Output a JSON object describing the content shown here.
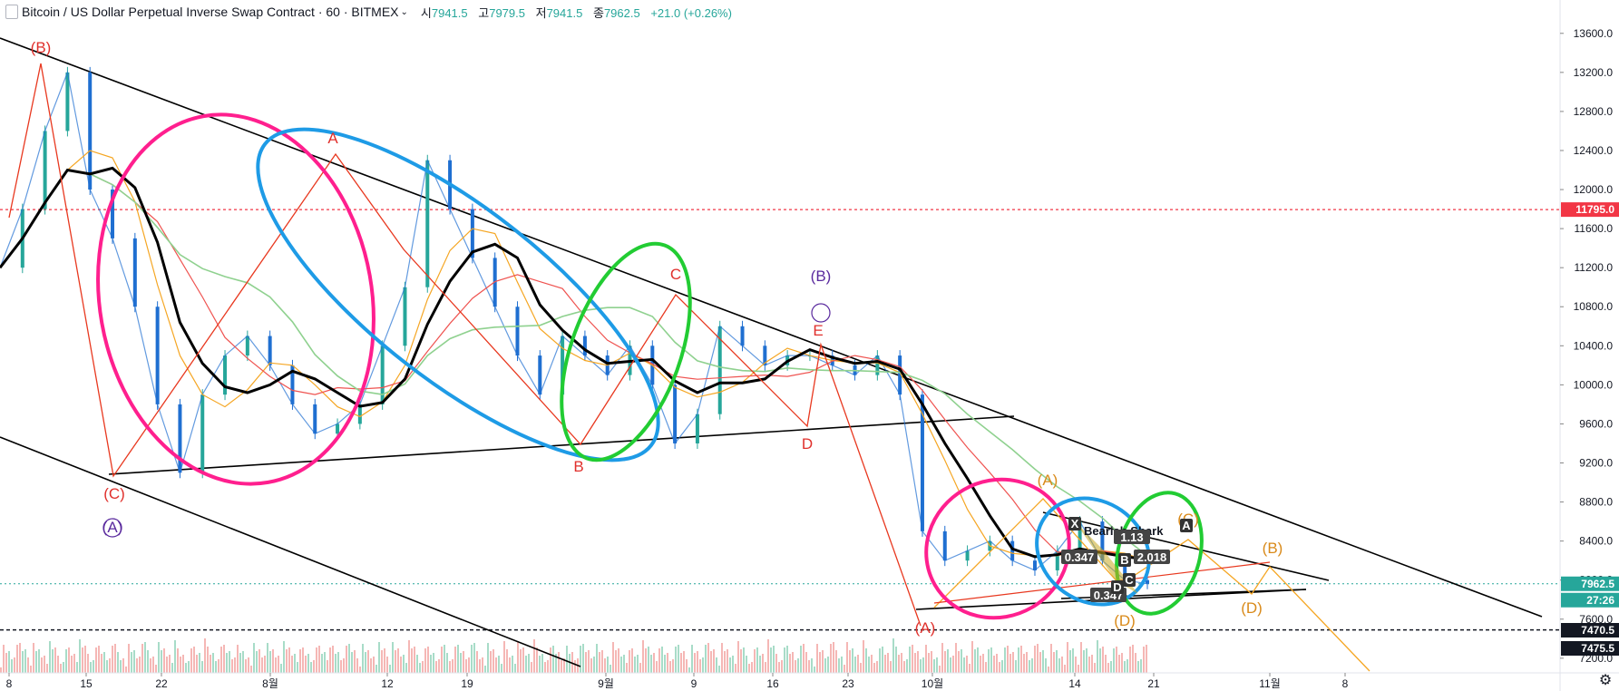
{
  "header": {
    "title": "Bitcoin / US Dollar Perpetual Inverse Swap Contract · 60 · BITMEX",
    "open_label": "시",
    "open": "7941.5",
    "high_label": "고",
    "high": "7979.5",
    "low_label": "저",
    "low": "7941.5",
    "close_label": "종",
    "close": "7962.5",
    "change": "+21.0 (+0.26%)"
  },
  "colors": {
    "up": "#26a69a",
    "down": "#ef5350",
    "price_line": "#26a69a",
    "red_level": "#f23645",
    "magenta": "#ff1f8e",
    "cyan": "#1e9be6",
    "green": "#22cc33",
    "orange": "#f5a623",
    "wave_red": "#e8381f"
  },
  "chart_data": {
    "type": "candlestick",
    "ylim": [
      7050,
      13700
    ],
    "y_ticks": [
      "13600.0",
      "13200.0",
      "12800.0",
      "12400.0",
      "12000.0",
      "11600.0",
      "11200.0",
      "10800.0",
      "10400.0",
      "10000.0",
      "9600.0",
      "9200.0",
      "8800.0",
      "8400.0",
      "8000.0",
      "7600.0",
      "7200.0"
    ],
    "x_ticks": [
      "8",
      "15",
      "22",
      "8월",
      "12",
      "19",
      "9월",
      "9",
      "16",
      "23",
      "10월",
      "14",
      "21",
      "11월",
      "8"
    ],
    "price_tags": [
      {
        "value": 11795.0,
        "label": "11795.0",
        "color": "#f23645"
      },
      {
        "value": 7962.5,
        "label": "7962.5",
        "color": "#26a69a"
      },
      {
        "value": 7470.5,
        "label": "7470.5",
        "color": "#131722"
      },
      {
        "value": 7475.5,
        "label": "7475.5",
        "color": "#131722"
      }
    ],
    "countdown": "27:26",
    "close_series_sampled": [
      11200,
      11800,
      12600,
      13200,
      12000,
      11500,
      10800,
      9800,
      9100,
      9900,
      10300,
      10500,
      10200,
      9800,
      9500,
      9600,
      9800,
      10400,
      11000,
      12300,
      11800,
      11300,
      10800,
      10300,
      9900,
      10500,
      10300,
      10100,
      10400,
      10000,
      9400,
      9700,
      10600,
      10400,
      10200,
      10300,
      10300,
      10200,
      10100,
      10300,
      9900,
      8500,
      8200,
      8300,
      8400,
      8200,
      8100,
      8300,
      8600,
      8200,
      8000,
      7962.5
    ],
    "annotations": [
      "(B)",
      "A",
      "C",
      "(B)",
      "E",
      "D",
      "B",
      "(C)",
      "(A)",
      "(A)",
      "(C)",
      "(D)",
      "(B)",
      "(D)",
      "(A)"
    ],
    "pattern": {
      "name": "Bearish Shark",
      "ratios": [
        "0.347",
        "2.018",
        "1.13",
        "0.347"
      ],
      "points": [
        "X",
        "A",
        "B",
        "C",
        "D"
      ]
    }
  }
}
